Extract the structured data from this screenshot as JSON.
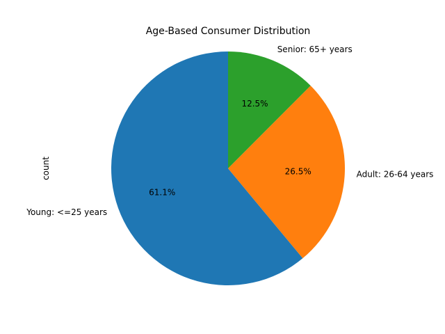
{
  "chart_data": {
    "type": "pie",
    "title": "Age-Based Consumer Distribution",
    "ylabel": "count",
    "xlabel": "",
    "categories": [
      "Young: <=25 years",
      "Adult: 26-64 years",
      "Senior: 65+ years"
    ],
    "values": [
      61.1,
      26.5,
      12.5
    ],
    "percent_labels": [
      "61.1%",
      "26.5%",
      "12.5%"
    ],
    "colors": [
      "#1f77b4",
      "#ff7f0e",
      "#2ca02c"
    ],
    "start_angle_deg": 90,
    "direction": "counterclockwise",
    "legend": "none"
  }
}
